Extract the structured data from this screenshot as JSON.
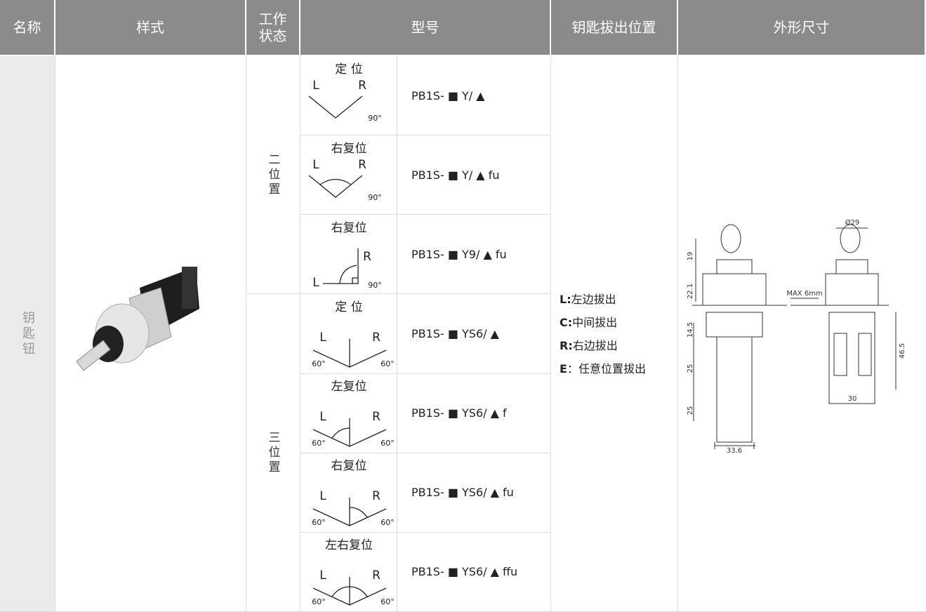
{
  "header": {
    "columns": [
      "名称",
      "样式",
      "工作状态",
      "型号",
      "钥匙拔出位置",
      "外形尺寸"
    ]
  },
  "table": {
    "name": "钥匙钮",
    "groups": [
      {
        "state": "二位置",
        "rows": [
          {
            "title": "定 位",
            "left": "L",
            "right": "R",
            "angles": [
              "90°"
            ],
            "model": "PB1S- ■ Y/ ▲"
          },
          {
            "title": "右复位",
            "left": "L",
            "right": "R",
            "angles": [
              "90°"
            ],
            "model": "PB1S- ■ Y/ ▲ fu"
          },
          {
            "title": "右复位",
            "left": "L",
            "right": "R",
            "angles": [
              "90°"
            ],
            "model": "PB1S- ■ Y9/ ▲ fu"
          }
        ]
      },
      {
        "state": "三位置",
        "rows": [
          {
            "title": "定 位",
            "left": "L",
            "right": "R",
            "angles": [
              "60°",
              "60°"
            ],
            "model": "PB1S- ■ YS6/ ▲"
          },
          {
            "title": "左复位",
            "left": "L",
            "right": "R",
            "angles": [
              "60°",
              "60°"
            ],
            "model": "PB1S- ■ YS6/ ▲ f"
          },
          {
            "title": "右复位",
            "left": "L",
            "right": "R",
            "angles": [
              "60°",
              "60°"
            ],
            "model": "PB1S- ■ YS6/ ▲ fu"
          },
          {
            "title": "左右复位",
            "left": "L",
            "right": "R",
            "angles": [
              "60°",
              "60°"
            ],
            "model": "PB1S- ■ YS6/ ▲ ffu"
          }
        ]
      }
    ],
    "key_positions": [
      {
        "key": "L:",
        "text": "左边拔出"
      },
      {
        "key": "C:",
        "text": "中间拔出"
      },
      {
        "key": "R:",
        "text": "右边拔出"
      },
      {
        "key": "E",
        "text": "：任意位置拔出"
      }
    ],
    "dimensions": {
      "left_key": "19",
      "left_head": "22.1",
      "left_top": "14.5",
      "left_mid": "25",
      "left_bottom": "25",
      "left_width": "33.6",
      "right_diameter": "Ø29",
      "panel": "MAX 6mm",
      "right_height": "46.5",
      "right_width": "30"
    }
  }
}
